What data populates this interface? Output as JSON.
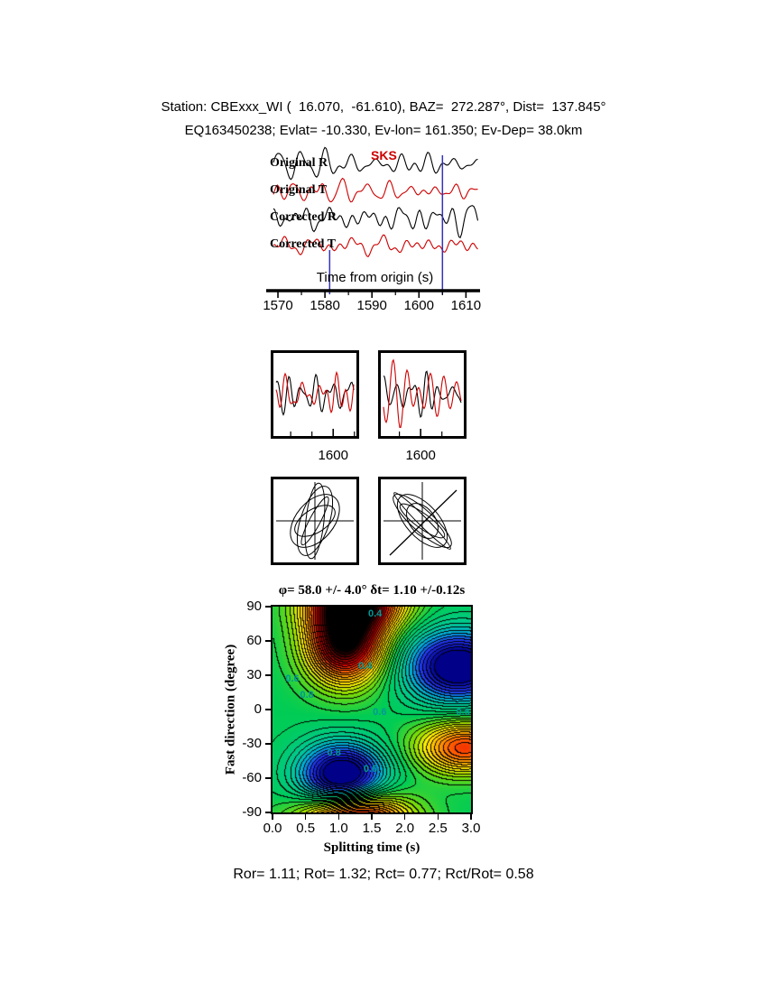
{
  "header": {
    "line1": "Station: CBExxx_WI (  16.070,  -61.610), BAZ=  272.287°, Dist=  137.845°",
    "line2": "EQ163450238; Evlat= -10.330, Ev-lon= 161.350; Ev-Dep= 38.0km"
  },
  "footer": {
    "stats": "Ror= 1.11; Rot= 1.32; Rct= 0.77; Rct/Rot= 0.58"
  },
  "chart_data": [
    {
      "type": "line",
      "name": "seismogram-traces",
      "xlabel": "Time from origin (s)",
      "xlim": [
        1567.5,
        1613
      ],
      "xticks": [
        1570,
        1580,
        1590,
        1600,
        1610
      ],
      "xticks_minor": [
        1575,
        1585,
        1595,
        1605
      ],
      "phase_label": "SKS",
      "phase_color": "#cc0000",
      "window_markers": {
        "start": 1581,
        "end": 1605,
        "color": "#3333bb"
      },
      "traces": [
        {
          "label": "Original R",
          "color": "#000000",
          "seed": 11,
          "amp": 12
        },
        {
          "label": "Original T",
          "color": "#cc0000",
          "seed": 22,
          "amp": 11
        },
        {
          "label": "Corrected R",
          "color": "#000000",
          "seed": 33,
          "amp": 12
        },
        {
          "label": "Corrected T",
          "color": "#cc0000",
          "seed": 44,
          "amp": 10
        }
      ]
    },
    {
      "type": "line",
      "name": "windowed-waveform-pairs",
      "series_colors": [
        "#000000",
        "#cc0000"
      ],
      "panels": [
        {
          "tick_label": "1600",
          "tick_frac": 0.72,
          "seeds": [
            55,
            66
          ]
        },
        {
          "tick_label": "1600",
          "tick_frac": 0.48,
          "seeds": [
            77,
            88
          ]
        }
      ]
    },
    {
      "type": "scatter",
      "name": "particle-motion",
      "panels": [
        {
          "style": "elliptical-loops",
          "diagonal": false,
          "ellipses": [
            [
              40,
              16,
              -72
            ],
            [
              34,
              21,
              -50
            ],
            [
              42,
              10,
              -84
            ],
            [
              25,
              13,
              -32
            ],
            [
              30,
              6,
              -62
            ]
          ]
        },
        {
          "style": "linearized-loops",
          "diagonal": true,
          "ellipses": [
            [
              42,
              12,
              42
            ],
            [
              36,
              18,
              48
            ],
            [
              30,
              8,
              36
            ],
            [
              44,
              5,
              45
            ],
            [
              22,
              14,
              52
            ]
          ]
        }
      ]
    },
    {
      "type": "heatmap",
      "name": "splitting-error-surface",
      "title": "φ= 58.0 +/- 4.0° δt= 1.10 +/-0.12s",
      "xlabel": "Splitting time (s)",
      "ylabel": "Fast direction (degree)",
      "xlim": [
        0.0,
        3.0
      ],
      "ylim": [
        -90,
        90
      ],
      "xticks": [
        "0.0",
        "0.5",
        "1.0",
        "1.5",
        "2.0",
        "2.5",
        "3.0"
      ],
      "yticks": [
        "90",
        "60",
        "30",
        "0",
        "-30",
        "-60",
        "-90"
      ],
      "best_fit": {
        "phi": 58.0,
        "phi_err": 4.0,
        "dt": 1.1,
        "dt_err": 0.12
      },
      "base_level": 0.62,
      "contour_interval": 0.03,
      "features": [
        {
          "kind": "min",
          "dt": 1.1,
          "phi": 58,
          "amp": -0.62,
          "sdt": 0.4,
          "sphi": 24
        },
        {
          "kind": "min",
          "dt": 1.25,
          "phi": 95,
          "amp": -0.6,
          "sdt": 0.5,
          "sphi": 18
        },
        {
          "kind": "min",
          "dt": 1.25,
          "phi": -95,
          "amp": -0.55,
          "sdt": 0.55,
          "sphi": 16
        },
        {
          "kind": "max",
          "dt": 2.8,
          "phi": 38,
          "amp": 0.46,
          "sdt": 0.55,
          "sphi": 22
        },
        {
          "kind": "max",
          "dt": 1.05,
          "phi": -58,
          "amp": 0.48,
          "sdt": 0.45,
          "sphi": 20
        },
        {
          "kind": "min",
          "dt": 2.9,
          "phi": -33,
          "amp": -0.4,
          "sdt": 0.5,
          "sphi": 16
        }
      ],
      "contour_labels": [
        {
          "text": "0.4",
          "dt": 1.55,
          "phi": 84
        },
        {
          "text": "0.4",
          "dt": 1.4,
          "phi": 38
        },
        {
          "text": "0.6",
          "dt": 0.3,
          "phi": 27
        },
        {
          "text": "0.8",
          "dt": 0.52,
          "phi": 13
        },
        {
          "text": "0.6",
          "dt": 1.62,
          "phi": -2
        },
        {
          "text": "0.6",
          "dt": 2.88,
          "phi": -2
        },
        {
          "text": "0.6",
          "dt": 1.48,
          "phi": -52
        },
        {
          "text": "0.8",
          "dt": 0.93,
          "phi": -38
        }
      ],
      "label_color": "#009999",
      "star_marker": "★"
    }
  ]
}
